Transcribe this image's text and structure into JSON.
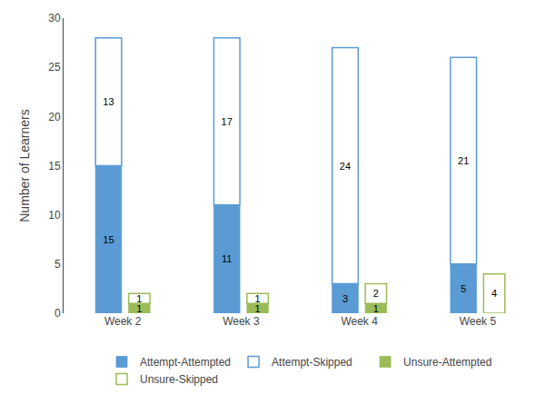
{
  "chart_data": {
    "type": "bar",
    "categories": [
      "Week 2",
      "Week 3",
      "Week 4",
      "Week 5"
    ],
    "ylabel": "Number of Learners",
    "ylim": [
      0,
      30
    ],
    "yticks": [
      0,
      5,
      10,
      15,
      20,
      25,
      30
    ],
    "stacked": true,
    "data_labels": true,
    "grid": false,
    "legend": "bottom",
    "series": [
      {
        "name": "Attempt-Attempted",
        "color": "#5B9BD5",
        "values": [
          15,
          11,
          3,
          5
        ]
      },
      {
        "name": "Attempt-Skipped",
        "color": "#5B9BD5",
        "marker": "hollow",
        "values": [
          13,
          17,
          24,
          21
        ]
      },
      {
        "name": "Unsure-Attempted",
        "color": "#9BBB59",
        "values": [
          1,
          1,
          1,
          0
        ]
      },
      {
        "name": "Unsure-Skipped",
        "color": "#9BBB59",
        "marker": "hollow",
        "values": [
          1,
          1,
          2,
          4
        ]
      }
    ]
  }
}
